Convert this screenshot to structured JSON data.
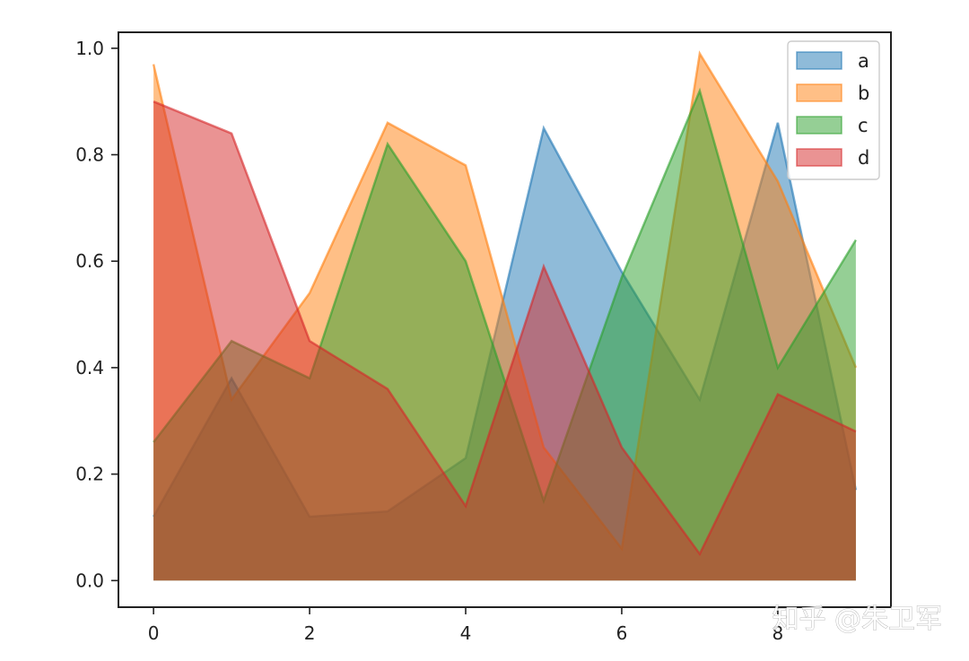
{
  "watermark": "知乎 @朱卫军",
  "chart_data": {
    "type": "area",
    "stacked": false,
    "x": [
      0,
      1,
      2,
      3,
      4,
      5,
      6,
      7,
      8,
      9
    ],
    "xlim": [
      -0.45,
      9.45
    ],
    "ylim": [
      -0.05,
      1.03
    ],
    "xticks": [
      0,
      2,
      4,
      6,
      8
    ],
    "yticks": [
      0.0,
      0.2,
      0.4,
      0.6,
      0.8,
      1.0
    ],
    "xtick_labels": [
      "0",
      "2",
      "4",
      "6",
      "8"
    ],
    "ytick_labels": [
      "0.0",
      "0.2",
      "0.4",
      "0.6",
      "0.8",
      "1.0"
    ],
    "grid": false,
    "legend_position": "top-right",
    "alpha": 0.5,
    "series": [
      {
        "name": "a",
        "color": "#1f77b4",
        "values": [
          0.12,
          0.38,
          0.12,
          0.13,
          0.23,
          0.85,
          0.58,
          0.34,
          0.86,
          0.17
        ]
      },
      {
        "name": "b",
        "color": "#ff7f0e",
        "values": [
          0.97,
          0.34,
          0.54,
          0.86,
          0.78,
          0.25,
          0.06,
          0.99,
          0.75,
          0.4
        ]
      },
      {
        "name": "c",
        "color": "#2ca02c",
        "values": [
          0.26,
          0.45,
          0.38,
          0.82,
          0.6,
          0.15,
          0.57,
          0.92,
          0.4,
          0.64
        ]
      },
      {
        "name": "d",
        "color": "#d62728",
        "values": [
          0.9,
          0.84,
          0.45,
          0.36,
          0.14,
          0.59,
          0.25,
          0.05,
          0.35,
          0.28
        ]
      }
    ]
  }
}
